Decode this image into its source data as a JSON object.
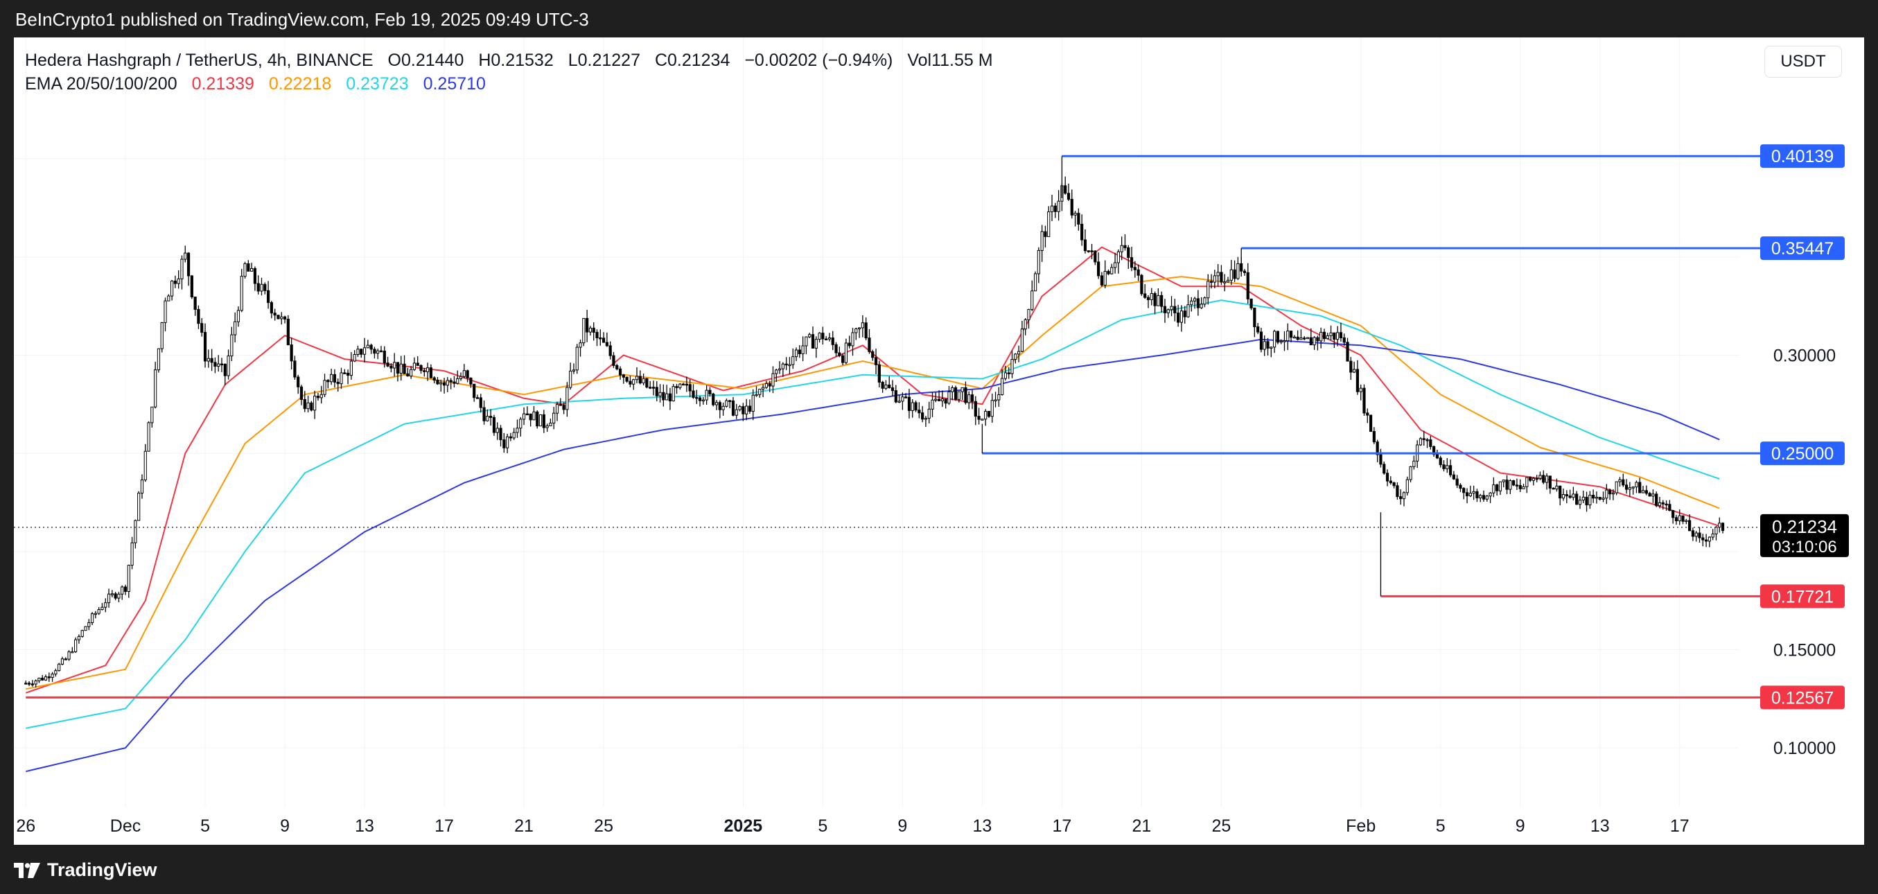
{
  "header": {
    "published": "BeInCrypto1 published on TradingView.com, Feb 19, 2025 09:49 UTC-3"
  },
  "legend": {
    "symbol": "Hedera Hashgraph / TetherUS, 4h, BINANCE",
    "open": "O0.21440",
    "high": "H0.21532",
    "low": "L0.21227",
    "close": "C0.21234",
    "change": "−0.00202 (−0.94%)",
    "volume": "Vol11.55 M",
    "ema_label": "EMA 20/50/100/200",
    "ema_values": [
      "0.21339",
      "0.22218",
      "0.23723",
      "0.25710"
    ]
  },
  "currency": "USDT",
  "footer": {
    "brand": "TradingView"
  },
  "colors": {
    "ema20": "#f23645",
    "ema50": "#ff9800",
    "ema100": "#22d6e6",
    "ema200": "#2d39e6",
    "resistance": "#2962ff",
    "support": "#f23645",
    "candle": "#000000"
  },
  "chart_data": {
    "type": "candlestick",
    "timeframe": "4h",
    "ylim": [
      0.075,
      0.435
    ],
    "xlim": [
      "2024-11-26",
      "2025-02-20"
    ],
    "y_ticks": [
      "0.10000",
      "0.15000",
      "0.30000"
    ],
    "x_ticks": [
      {
        "date": "2024-11-26",
        "label": "26"
      },
      {
        "date": "2024-12-01",
        "label": "Dec"
      },
      {
        "date": "2024-12-05",
        "label": "5"
      },
      {
        "date": "2024-12-09",
        "label": "9"
      },
      {
        "date": "2024-12-13",
        "label": "13"
      },
      {
        "date": "2024-12-17",
        "label": "17"
      },
      {
        "date": "2024-12-21",
        "label": "21"
      },
      {
        "date": "2024-12-25",
        "label": "25"
      },
      {
        "date": "2025-01-01",
        "label": "2025",
        "bold": true
      },
      {
        "date": "2025-01-05",
        "label": "5"
      },
      {
        "date": "2025-01-09",
        "label": "9"
      },
      {
        "date": "2025-01-13",
        "label": "13"
      },
      {
        "date": "2025-01-17",
        "label": "17"
      },
      {
        "date": "2025-01-21",
        "label": "21"
      },
      {
        "date": "2025-01-25",
        "label": "25"
      },
      {
        "date": "2025-02-01",
        "label": "Feb"
      },
      {
        "date": "2025-02-05",
        "label": "5"
      },
      {
        "date": "2025-02-09",
        "label": "9"
      },
      {
        "date": "2025-02-13",
        "label": "13"
      },
      {
        "date": "2025-02-17",
        "label": "17"
      }
    ],
    "price_path": [
      [
        "2024-11-26",
        0.133
      ],
      [
        "2024-11-27",
        0.136
      ],
      [
        "2024-11-28",
        0.145
      ],
      [
        "2024-11-29",
        0.162
      ],
      [
        "2024-11-30",
        0.175
      ],
      [
        "2024-12-01",
        0.182
      ],
      [
        "2024-12-02",
        0.25
      ],
      [
        "2024-12-03",
        0.33
      ],
      [
        "2024-12-04",
        0.35
      ],
      [
        "2024-12-05",
        0.3
      ],
      [
        "2024-12-06",
        0.29
      ],
      [
        "2024-12-07",
        0.345
      ],
      [
        "2024-12-08",
        0.33
      ],
      [
        "2024-12-09",
        0.315
      ],
      [
        "2024-12-10",
        0.27
      ],
      [
        "2024-12-11",
        0.285
      ],
      [
        "2024-12-12",
        0.29
      ],
      [
        "2024-12-13",
        0.305
      ],
      [
        "2024-12-14",
        0.3
      ],
      [
        "2024-12-15",
        0.29
      ],
      [
        "2024-12-16",
        0.295
      ],
      [
        "2024-12-17",
        0.285
      ],
      [
        "2024-12-18",
        0.29
      ],
      [
        "2024-12-19",
        0.27
      ],
      [
        "2024-12-20",
        0.255
      ],
      [
        "2024-12-21",
        0.272
      ],
      [
        "2024-12-22",
        0.265
      ],
      [
        "2024-12-23",
        0.275
      ],
      [
        "2024-12-24",
        0.315
      ],
      [
        "2024-12-25",
        0.305
      ],
      [
        "2024-12-26",
        0.29
      ],
      [
        "2024-12-27",
        0.285
      ],
      [
        "2024-12-28",
        0.278
      ],
      [
        "2024-12-29",
        0.283
      ],
      [
        "2024-12-30",
        0.28
      ],
      [
        "2024-12-31",
        0.275
      ],
      [
        "2025-01-01",
        0.27
      ],
      [
        "2025-01-02",
        0.283
      ],
      [
        "2025-01-03",
        0.295
      ],
      [
        "2025-01-04",
        0.305
      ],
      [
        "2025-01-05",
        0.31
      ],
      [
        "2025-01-06",
        0.3
      ],
      [
        "2025-01-07",
        0.315
      ],
      [
        "2025-01-08",
        0.285
      ],
      [
        "2025-01-09",
        0.277
      ],
      [
        "2025-01-10",
        0.27
      ],
      [
        "2025-01-11",
        0.278
      ],
      [
        "2025-01-12",
        0.282
      ],
      [
        "2025-01-13",
        0.265
      ],
      [
        "2025-01-14",
        0.285
      ],
      [
        "2025-01-15",
        0.31
      ],
      [
        "2025-01-16",
        0.36
      ],
      [
        "2025-01-17",
        0.385
      ],
      [
        "2025-01-18",
        0.36
      ],
      [
        "2025-01-19",
        0.34
      ],
      [
        "2025-01-20",
        0.355
      ],
      [
        "2025-01-21",
        0.335
      ],
      [
        "2025-01-22",
        0.325
      ],
      [
        "2025-01-23",
        0.32
      ],
      [
        "2025-01-24",
        0.33
      ],
      [
        "2025-01-25",
        0.34
      ],
      [
        "2025-01-26",
        0.345
      ],
      [
        "2025-01-27",
        0.305
      ],
      [
        "2025-01-28",
        0.31
      ],
      [
        "2025-01-29",
        0.305
      ],
      [
        "2025-01-30",
        0.31
      ],
      [
        "2025-01-31",
        0.31
      ],
      [
        "2025-02-01",
        0.28
      ],
      [
        "2025-02-02",
        0.245
      ],
      [
        "2025-02-03",
        0.225
      ],
      [
        "2025-02-04",
        0.26
      ],
      [
        "2025-02-05",
        0.245
      ],
      [
        "2025-02-06",
        0.232
      ],
      [
        "2025-02-07",
        0.228
      ],
      [
        "2025-02-08",
        0.235
      ],
      [
        "2025-02-09",
        0.232
      ],
      [
        "2025-02-10",
        0.24
      ],
      [
        "2025-02-11",
        0.23
      ],
      [
        "2025-02-12",
        0.225
      ],
      [
        "2025-02-13",
        0.228
      ],
      [
        "2025-02-14",
        0.235
      ],
      [
        "2025-02-15",
        0.232
      ],
      [
        "2025-02-16",
        0.225
      ],
      [
        "2025-02-17",
        0.217
      ],
      [
        "2025-02-18",
        0.205
      ],
      [
        "2025-02-19",
        0.212
      ]
    ],
    "ema": [
      {
        "name": "EMA 20",
        "color": "#f23645",
        "points": [
          [
            "2024-11-26",
            0.128
          ],
          [
            "2024-11-30",
            0.142
          ],
          [
            "2024-12-02",
            0.175
          ],
          [
            "2024-12-04",
            0.25
          ],
          [
            "2024-12-06",
            0.285
          ],
          [
            "2024-12-09",
            0.31
          ],
          [
            "2024-12-12",
            0.298
          ],
          [
            "2024-12-17",
            0.292
          ],
          [
            "2024-12-21",
            0.278
          ],
          [
            "2024-12-23",
            0.275
          ],
          [
            "2024-12-26",
            0.3
          ],
          [
            "2024-12-31",
            0.282
          ],
          [
            "2025-01-04",
            0.292
          ],
          [
            "2025-01-07",
            0.305
          ],
          [
            "2025-01-10",
            0.28
          ],
          [
            "2025-01-13",
            0.275
          ],
          [
            "2025-01-16",
            0.33
          ],
          [
            "2025-01-19",
            0.355
          ],
          [
            "2025-01-23",
            0.335
          ],
          [
            "2025-01-26",
            0.335
          ],
          [
            "2025-01-29",
            0.315
          ],
          [
            "2025-02-01",
            0.3
          ],
          [
            "2025-02-04",
            0.262
          ],
          [
            "2025-02-08",
            0.24
          ],
          [
            "2025-02-13",
            0.233
          ],
          [
            "2025-02-19",
            0.213
          ]
        ]
      },
      {
        "name": "EMA 50",
        "color": "#ff9800",
        "points": [
          [
            "2024-11-26",
            0.13
          ],
          [
            "2024-12-01",
            0.14
          ],
          [
            "2024-12-04",
            0.2
          ],
          [
            "2024-12-07",
            0.255
          ],
          [
            "2024-12-10",
            0.28
          ],
          [
            "2024-12-15",
            0.29
          ],
          [
            "2024-12-21",
            0.28
          ],
          [
            "2024-12-26",
            0.29
          ],
          [
            "2025-01-01",
            0.283
          ],
          [
            "2025-01-07",
            0.297
          ],
          [
            "2025-01-13",
            0.283
          ],
          [
            "2025-01-16",
            0.31
          ],
          [
            "2025-01-19",
            0.335
          ],
          [
            "2025-01-23",
            0.34
          ],
          [
            "2025-01-27",
            0.335
          ],
          [
            "2025-02-01",
            0.315
          ],
          [
            "2025-02-05",
            0.28
          ],
          [
            "2025-02-10",
            0.253
          ],
          [
            "2025-02-15",
            0.238
          ],
          [
            "2025-02-19",
            0.222
          ]
        ]
      },
      {
        "name": "EMA 100",
        "color": "#22d6e6",
        "points": [
          [
            "2024-11-26",
            0.11
          ],
          [
            "2024-12-01",
            0.12
          ],
          [
            "2024-12-04",
            0.155
          ],
          [
            "2024-12-07",
            0.2
          ],
          [
            "2024-12-10",
            0.24
          ],
          [
            "2024-12-15",
            0.265
          ],
          [
            "2024-12-21",
            0.275
          ],
          [
            "2024-12-26",
            0.278
          ],
          [
            "2025-01-01",
            0.28
          ],
          [
            "2025-01-07",
            0.29
          ],
          [
            "2025-01-13",
            0.288
          ],
          [
            "2025-01-16",
            0.298
          ],
          [
            "2025-01-20",
            0.318
          ],
          [
            "2025-01-25",
            0.328
          ],
          [
            "2025-01-30",
            0.32
          ],
          [
            "2025-02-03",
            0.305
          ],
          [
            "2025-02-08",
            0.28
          ],
          [
            "2025-02-13",
            0.258
          ],
          [
            "2025-02-19",
            0.237
          ]
        ]
      },
      {
        "name": "EMA 200",
        "color": "#2d39e6",
        "points": [
          [
            "2024-11-26",
            0.088
          ],
          [
            "2024-12-01",
            0.1
          ],
          [
            "2024-12-04",
            0.135
          ],
          [
            "2024-12-08",
            0.175
          ],
          [
            "2024-12-13",
            0.21
          ],
          [
            "2024-12-18",
            0.235
          ],
          [
            "2024-12-23",
            0.252
          ],
          [
            "2024-12-28",
            0.262
          ],
          [
            "2025-01-03",
            0.27
          ],
          [
            "2025-01-09",
            0.28
          ],
          [
            "2025-01-13",
            0.283
          ],
          [
            "2025-01-17",
            0.293
          ],
          [
            "2025-01-22",
            0.3
          ],
          [
            "2025-01-27",
            0.308
          ],
          [
            "2025-02-01",
            0.305
          ],
          [
            "2025-02-06",
            0.298
          ],
          [
            "2025-02-11",
            0.285
          ],
          [
            "2025-02-16",
            0.27
          ],
          [
            "2025-02-19",
            0.257
          ]
        ]
      }
    ],
    "levels": [
      {
        "price": 0.40139,
        "label": "0.40139",
        "type": "resistance",
        "from": "2025-01-17"
      },
      {
        "price": 0.35447,
        "label": "0.35447",
        "type": "resistance",
        "from": "2025-01-26"
      },
      {
        "price": 0.25,
        "label": "0.25000",
        "type": "resistance",
        "from": "2025-01-13"
      },
      {
        "price": 0.17721,
        "label": "0.17721",
        "type": "support",
        "from": "2025-02-02"
      },
      {
        "price": 0.12567,
        "label": "0.12567",
        "type": "support",
        "from": "2024-11-26"
      }
    ],
    "current_price": {
      "label": "0.21234",
      "price": 0.21234,
      "countdown": "03:10:06"
    }
  }
}
